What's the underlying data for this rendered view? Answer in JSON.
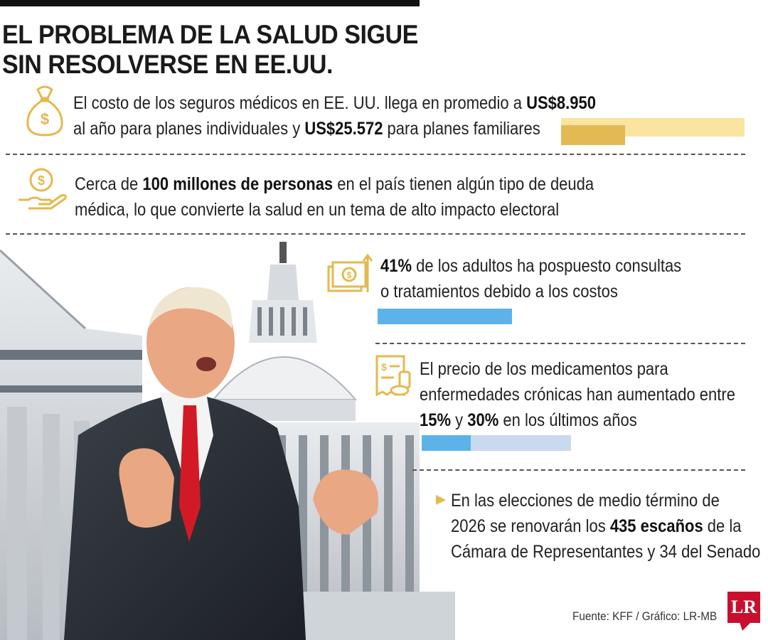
{
  "title": {
    "line1": "EL PROBLEMA DE LA SALUD SIGUE",
    "line2": "SIN RESOLVERSE EN EE.UU."
  },
  "items": [
    {
      "icon": "money-bag-icon",
      "line1_pre": "El costo de los seguros médicos  en EE. UU. llega en promedio a ",
      "line1_bold": "US$8.950",
      "line2_pre": "al año para planes individuales y ",
      "line2_bold": "US$25.572",
      "line2_post": " para planes familiares",
      "bar": {
        "individual": 8950,
        "family": 25572
      }
    },
    {
      "icon": "hand-coin-icon",
      "line1_pre": "Cerca de ",
      "line1_bold": "100 millones de personas",
      "line1_post": " en el país tienen algún tipo de deuda",
      "line2": "médica, lo que convierte la salud en un tema de alto impacto electoral"
    },
    {
      "icon": "cash-rising-icon",
      "line1_bold": "41%",
      "line1_post": " de los adultos ha pospuesto consultas",
      "line2": "o tratamientos debido a los costos",
      "bar": {
        "percent": 41
      }
    },
    {
      "icon": "prescription-icon",
      "line1": "El precio de los medicamentos para",
      "line2": "enfermedades crónicas han aumentado entre",
      "line3_bold1": "15%",
      "line3_mid": " y ",
      "line3_bold2": "30%",
      "line3_post": " en los últimos años",
      "bar": {
        "low": 15,
        "high": 30
      }
    },
    {
      "icon": "triangle-bullet-icon",
      "line1": "En las elecciones de medio término de",
      "line2_pre": "2026 se renovarán los ",
      "line2_bold": "435 escaños",
      "line2_post": " de la",
      "line3": "Cámara de Representantes y 34 del Senado"
    }
  ],
  "credit": "Fuente: KFF / Gráfico: LR-MB",
  "logo": "LR",
  "colors": {
    "gold_dark": "#e3b953",
    "gold_light": "#fbe3a0",
    "blue_dark": "#5cb3ea",
    "blue_light": "#c9d9ef",
    "accent_icon": "#e6b84e",
    "logo_red": "#c8102e"
  }
}
